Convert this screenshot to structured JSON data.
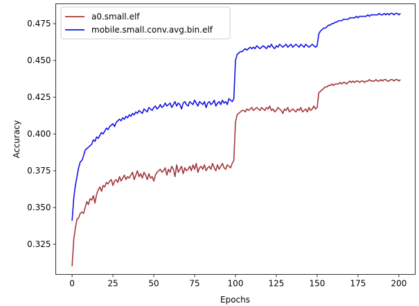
{
  "chart_data": {
    "type": "line",
    "xlabel": "Epochs",
    "ylabel": "Accuracy",
    "xlim": [
      -10,
      210
    ],
    "ylim": [
      0.3045,
      0.4885
    ],
    "xticks": [
      0,
      25,
      50,
      75,
      100,
      125,
      150,
      175,
      200
    ],
    "yticks": [
      0.325,
      0.35,
      0.375,
      0.4,
      0.425,
      0.45,
      0.475
    ],
    "grid": false,
    "legend_position": "top-left",
    "x_step": 1,
    "series": [
      {
        "name": "a0.small.elf",
        "color": "#a3353a",
        "values": [
          0.31,
          0.328,
          0.336,
          0.342,
          0.343,
          0.346,
          0.347,
          0.346,
          0.35,
          0.354,
          0.352,
          0.356,
          0.355,
          0.358,
          0.353,
          0.359,
          0.362,
          0.364,
          0.361,
          0.365,
          0.364,
          0.367,
          0.366,
          0.368,
          0.369,
          0.365,
          0.368,
          0.369,
          0.367,
          0.371,
          0.368,
          0.37,
          0.372,
          0.369,
          0.371,
          0.37,
          0.372,
          0.374,
          0.369,
          0.372,
          0.375,
          0.371,
          0.373,
          0.37,
          0.374,
          0.372,
          0.369,
          0.373,
          0.37,
          0.371,
          0.368,
          0.372,
          0.374,
          0.375,
          0.376,
          0.374,
          0.375,
          0.377,
          0.372,
          0.376,
          0.374,
          0.378,
          0.376,
          0.371,
          0.379,
          0.374,
          0.376,
          0.378,
          0.373,
          0.377,
          0.375,
          0.376,
          0.378,
          0.375,
          0.379,
          0.376,
          0.38,
          0.374,
          0.377,
          0.378,
          0.376,
          0.379,
          0.375,
          0.377,
          0.378,
          0.376,
          0.38,
          0.377,
          0.375,
          0.379,
          0.376,
          0.378,
          0.38,
          0.377,
          0.376,
          0.379,
          0.378,
          0.377,
          0.38,
          0.382,
          0.408,
          0.413,
          0.414,
          0.415,
          0.416,
          0.416,
          0.415,
          0.417,
          0.416,
          0.417,
          0.418,
          0.416,
          0.417,
          0.418,
          0.417,
          0.416,
          0.418,
          0.417,
          0.416,
          0.418,
          0.417,
          0.419,
          0.416,
          0.417,
          0.415,
          0.416,
          0.418,
          0.417,
          0.416,
          0.414,
          0.417,
          0.416,
          0.418,
          0.415,
          0.416,
          0.417,
          0.416,
          0.415,
          0.417,
          0.416,
          0.418,
          0.415,
          0.416,
          0.417,
          0.415,
          0.418,
          0.416,
          0.417,
          0.419,
          0.417,
          0.418,
          0.428,
          0.429,
          0.43,
          0.431,
          0.432,
          0.432,
          0.433,
          0.433,
          0.434,
          0.433,
          0.434,
          0.434,
          0.434,
          0.435,
          0.434,
          0.435,
          0.435,
          0.434,
          0.435,
          0.436,
          0.435,
          0.436,
          0.435,
          0.436,
          0.436,
          0.435,
          0.436,
          0.436,
          0.435,
          0.436,
          0.436,
          0.437,
          0.436,
          0.436,
          0.436,
          0.437,
          0.436,
          0.436,
          0.437,
          0.436,
          0.437,
          0.437,
          0.436,
          0.436,
          0.437,
          0.437,
          0.436,
          0.437,
          0.437,
          0.436,
          0.437
        ]
      },
      {
        "name": "mobile.small.conv.avg.bin.elf",
        "color": "#1010e8",
        "values": [
          0.341,
          0.356,
          0.365,
          0.371,
          0.377,
          0.381,
          0.382,
          0.385,
          0.389,
          0.39,
          0.391,
          0.392,
          0.393,
          0.396,
          0.395,
          0.398,
          0.397,
          0.399,
          0.401,
          0.4,
          0.402,
          0.404,
          0.403,
          0.405,
          0.406,
          0.407,
          0.405,
          0.408,
          0.409,
          0.41,
          0.409,
          0.411,
          0.41,
          0.412,
          0.411,
          0.413,
          0.412,
          0.414,
          0.413,
          0.415,
          0.414,
          0.416,
          0.415,
          0.414,
          0.417,
          0.416,
          0.415,
          0.418,
          0.417,
          0.416,
          0.418,
          0.419,
          0.417,
          0.418,
          0.42,
          0.418,
          0.419,
          0.421,
          0.419,
          0.42,
          0.421,
          0.418,
          0.42,
          0.422,
          0.419,
          0.421,
          0.42,
          0.417,
          0.421,
          0.422,
          0.42,
          0.419,
          0.422,
          0.421,
          0.42,
          0.423,
          0.421,
          0.419,
          0.422,
          0.421,
          0.42,
          0.422,
          0.418,
          0.421,
          0.422,
          0.42,
          0.421,
          0.423,
          0.419,
          0.421,
          0.422,
          0.42,
          0.423,
          0.421,
          0.422,
          0.42,
          0.424,
          0.423,
          0.422,
          0.424,
          0.45,
          0.454,
          0.455,
          0.456,
          0.456,
          0.457,
          0.458,
          0.457,
          0.458,
          0.459,
          0.458,
          0.459,
          0.458,
          0.46,
          0.459,
          0.458,
          0.459,
          0.46,
          0.459,
          0.458,
          0.46,
          0.459,
          0.461,
          0.459,
          0.458,
          0.46,
          0.459,
          0.461,
          0.46,
          0.459,
          0.46,
          0.461,
          0.459,
          0.46,
          0.461,
          0.459,
          0.46,
          0.461,
          0.46,
          0.459,
          0.461,
          0.46,
          0.459,
          0.461,
          0.46,
          0.459,
          0.46,
          0.461,
          0.46,
          0.459,
          0.46,
          0.468,
          0.47,
          0.471,
          0.472,
          0.472,
          0.473,
          0.474,
          0.474,
          0.475,
          0.475,
          0.476,
          0.476,
          0.477,
          0.477,
          0.477,
          0.478,
          0.478,
          0.478,
          0.478,
          0.479,
          0.479,
          0.479,
          0.479,
          0.48,
          0.479,
          0.48,
          0.48,
          0.48,
          0.48,
          0.48,
          0.481,
          0.48,
          0.481,
          0.481,
          0.481,
          0.481,
          0.481,
          0.482,
          0.481,
          0.481,
          0.482,
          0.481,
          0.482,
          0.481,
          0.482,
          0.482,
          0.481,
          0.482,
          0.482,
          0.481,
          0.482
        ]
      }
    ]
  }
}
